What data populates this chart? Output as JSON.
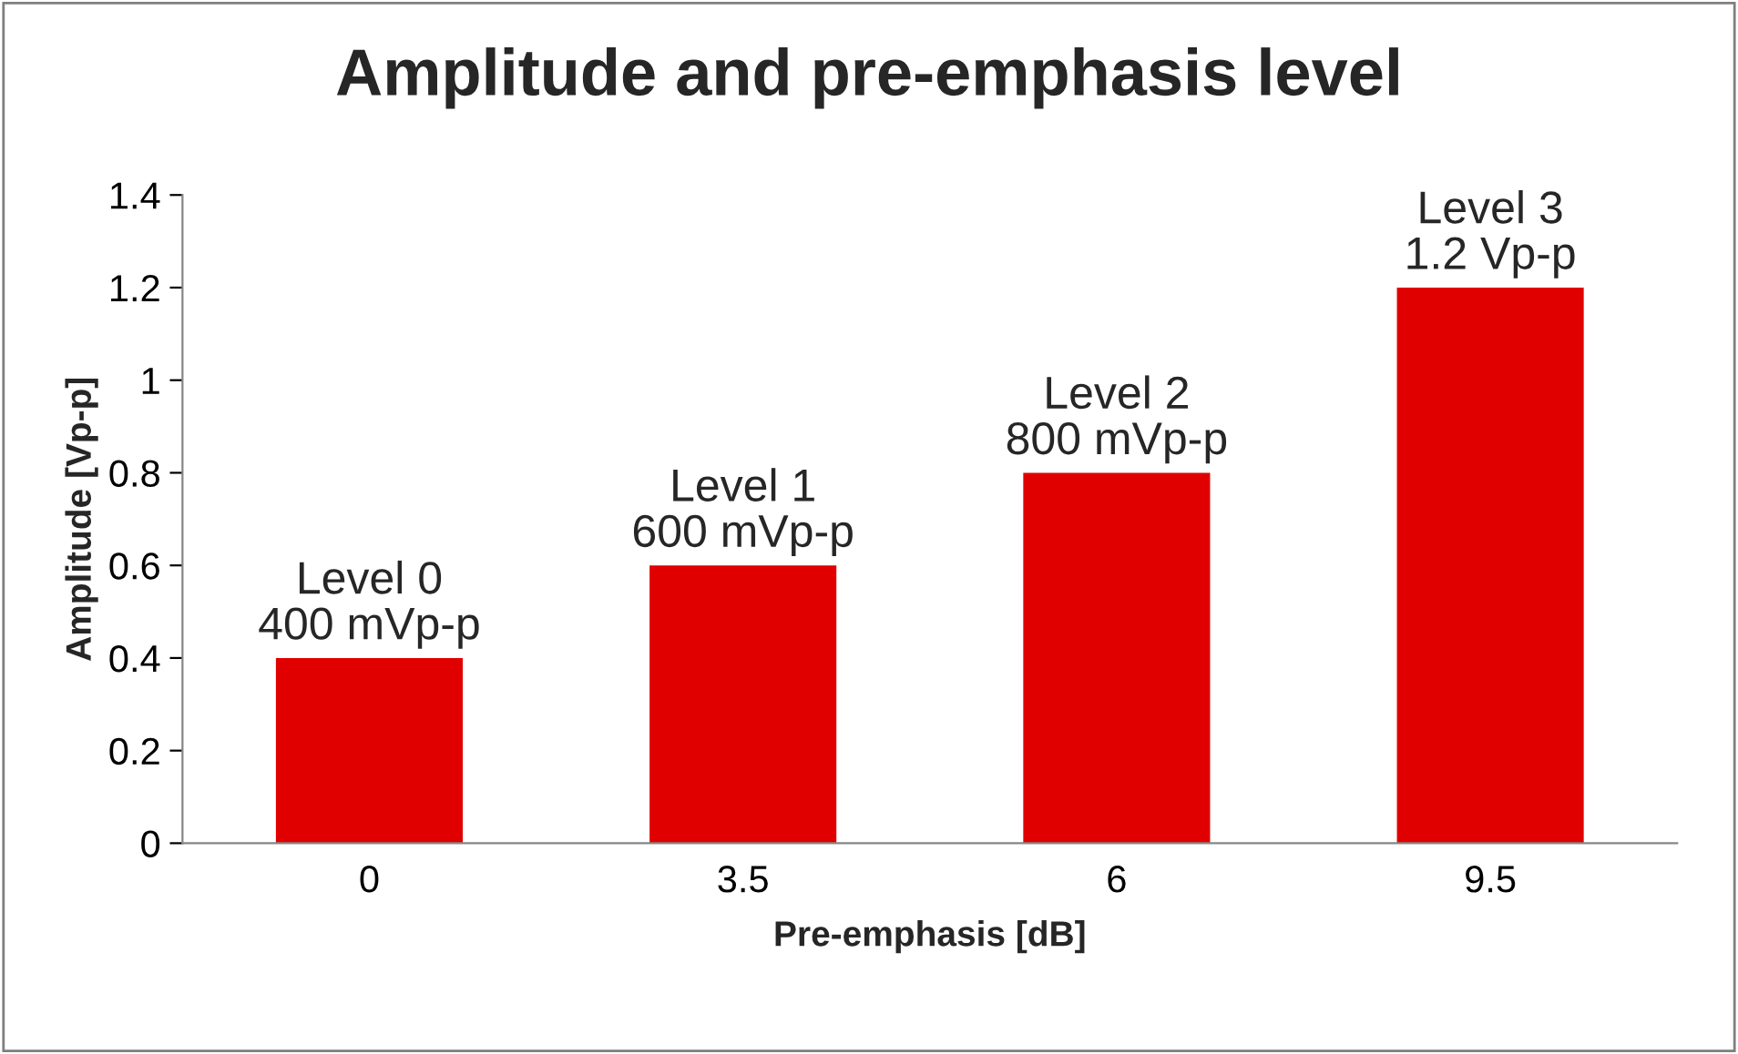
{
  "chart_data": {
    "type": "bar",
    "title": "Amplitude and pre-emphasis level",
    "xlabel": "Pre-emphasis [dB]",
    "ylabel": "Amplitude [Vp-p]",
    "categories": [
      "0",
      "3.5",
      "6",
      "9.5"
    ],
    "values": [
      0.4,
      0.6,
      0.8,
      1.2
    ],
    "value_labels": [
      "Level 0\n400 mVp-p",
      "Level 1\n600 mVp-p",
      "Level 2\n800 mVp-p",
      "Level 3\n1.2 Vp-p"
    ],
    "color": "#e00000",
    "ylim": [
      0,
      1.4
    ],
    "yticks": [
      0,
      0.2,
      0.4,
      0.6,
      0.8,
      1,
      1.2,
      1.4
    ],
    "grid": false,
    "legend": false
  }
}
